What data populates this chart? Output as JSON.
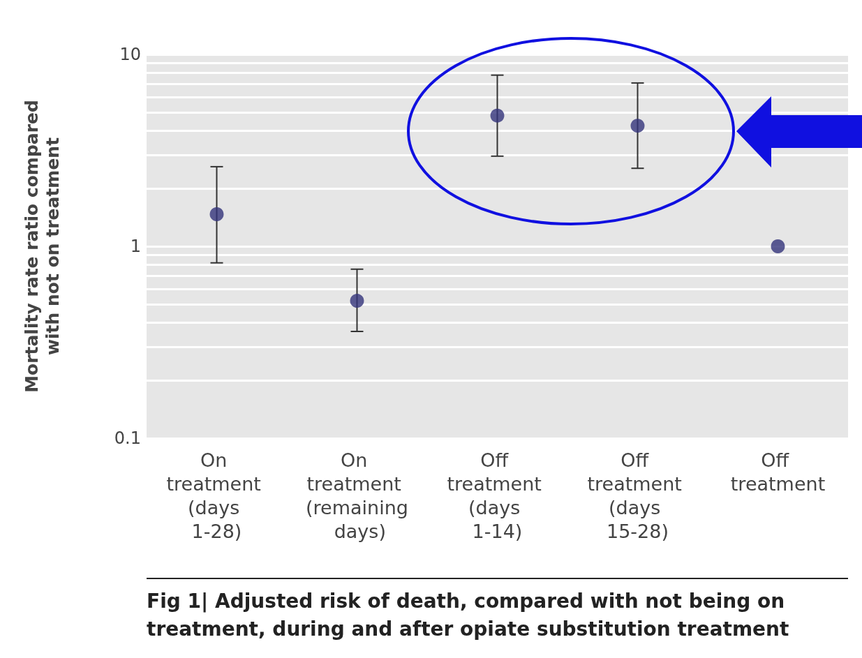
{
  "chart_data": {
    "type": "scatter",
    "ylabel": "Mortality rate ratio compared with not on treatment",
    "categories": [
      "On treatment (days 1-28)",
      "On treatment (remaining days)",
      "Off treatment (days 1-14)",
      "Off treatment (days 15-28)",
      "Off treatment"
    ],
    "values": [
      1.47,
      0.52,
      4.8,
      4.25,
      1
    ],
    "errors": [
      [
        0.82,
        2.6
      ],
      [
        0.36,
        0.76
      ],
      [
        2.95,
        7.8
      ],
      [
        2.55,
        7.1
      ],
      null
    ],
    "color": "#33337a",
    "marker": "circle",
    "log": "y",
    "grid": "y",
    "ylim": [
      0.1,
      10
    ],
    "yticks": [
      0.1,
      {
        "value": 0.2,
        "label": null
      },
      {
        "value": 0.3,
        "label": null
      },
      {
        "value": 0.4,
        "label": null
      },
      {
        "value": 0.5,
        "label": null
      },
      {
        "value": 0.6,
        "label": null
      },
      {
        "value": 0.7,
        "label": null
      },
      {
        "value": 0.8,
        "label": null
      },
      {
        "value": 0.9,
        "label": null
      },
      1,
      {
        "value": 2,
        "label": null
      },
      {
        "value": 3,
        "label": null
      },
      {
        "value": 4,
        "label": null
      },
      {
        "value": 5,
        "label": null
      },
      {
        "value": 6,
        "label": null
      },
      {
        "value": 7,
        "label": null
      },
      {
        "value": 8,
        "label": null
      },
      {
        "value": 9,
        "label": null
      },
      10
    ],
    "annotations": [
      "Fig 1| Adjusted risk of death, compared with not being on treatment, during and after opiate substitution treatment"
    ]
  }
}
